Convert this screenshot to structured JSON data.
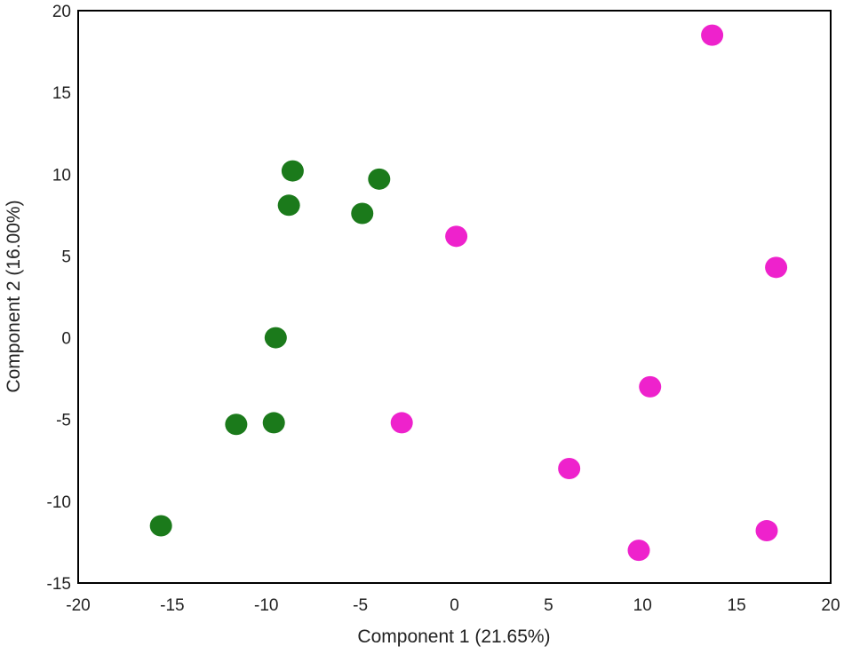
{
  "chart_data": {
    "type": "scatter",
    "title": "",
    "xlabel": "Component 1 (21.65%)",
    "ylabel": "Component 2 (16.00%)",
    "xlim": [
      -20,
      20
    ],
    "ylim": [
      -15,
      20
    ],
    "xticks": [
      -20,
      -15,
      -10,
      -5,
      0,
      5,
      10,
      15,
      20
    ],
    "yticks": [
      -15,
      -10,
      -5,
      0,
      5,
      10,
      15,
      20
    ],
    "grid": false,
    "legend": "none",
    "series": [
      {
        "color": "#1b7a1b",
        "points": [
          {
            "x": -8.6,
            "y": 10.2
          },
          {
            "x": -4.0,
            "y": 9.7
          },
          {
            "x": -8.8,
            "y": 8.1
          },
          {
            "x": -4.9,
            "y": 7.6
          },
          {
            "x": -9.5,
            "y": 0.0
          },
          {
            "x": -11.6,
            "y": -5.3
          },
          {
            "x": -9.6,
            "y": -5.2
          },
          {
            "x": -15.6,
            "y": -11.5
          }
        ]
      },
      {
        "color": "#ee22cc",
        "points": [
          {
            "x": 13.7,
            "y": 18.5
          },
          {
            "x": 0.1,
            "y": 6.2
          },
          {
            "x": 17.1,
            "y": 4.3
          },
          {
            "x": 10.4,
            "y": -3.0
          },
          {
            "x": -2.8,
            "y": -5.2
          },
          {
            "x": 6.1,
            "y": -8.0
          },
          {
            "x": 16.6,
            "y": -11.8
          },
          {
            "x": 9.8,
            "y": -13.0
          }
        ]
      }
    ]
  }
}
